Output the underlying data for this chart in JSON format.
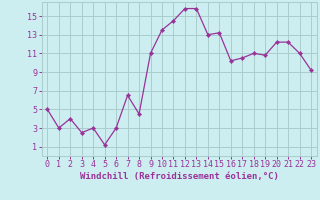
{
  "x": [
    0,
    1,
    2,
    3,
    4,
    5,
    6,
    7,
    8,
    9,
    10,
    11,
    12,
    13,
    14,
    15,
    16,
    17,
    18,
    19,
    20,
    21,
    22,
    23
  ],
  "y": [
    5,
    3,
    4,
    2.5,
    3,
    1.2,
    3,
    6.5,
    4.5,
    11,
    13.5,
    14.5,
    15.8,
    15.8,
    13,
    13.2,
    10.2,
    10.5,
    11,
    10.8,
    12.2,
    12.2,
    11,
    9.2
  ],
  "line_color": "#993399",
  "marker_color": "#993399",
  "bg_color": "#cceef0",
  "grid_color": "#aacccc",
  "xlabel": "Windchill (Refroidissement éolien,°C)",
  "ylabel_ticks": [
    1,
    3,
    5,
    7,
    9,
    11,
    13,
    15
  ],
  "ylim": [
    0,
    16.5
  ],
  "xlim": [
    -0.5,
    23.5
  ],
  "tick_color": "#993399",
  "xlabel_color": "#993399",
  "font_size": 6.5,
  "xlabel_font_size": 6.5
}
